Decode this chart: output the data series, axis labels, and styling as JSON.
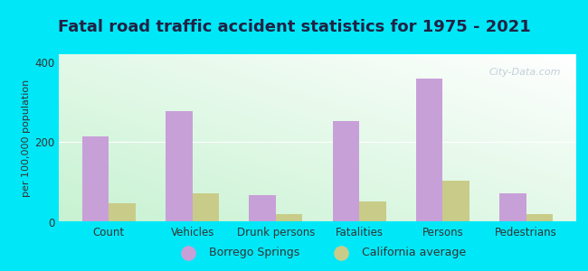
{
  "title": "Fatal road traffic accident statistics for 1975 - 2021",
  "categories": [
    "Count",
    "Vehicles",
    "Drunk persons",
    "Fatalities",
    "Persons",
    "Pedestrians"
  ],
  "borrego_springs": [
    215,
    278,
    68,
    252,
    360,
    72
  ],
  "california_avg": [
    48,
    72,
    20,
    52,
    105,
    20
  ],
  "borrego_color": "#c8a0d8",
  "california_color": "#c8cc88",
  "ylabel": "per 100,000 population",
  "ylim": [
    0,
    420
  ],
  "yticks": [
    0,
    200,
    400
  ],
  "outer_bg": "#00e8f8",
  "bar_width": 0.32,
  "legend_labels": [
    "Borrego Springs",
    "California average"
  ],
  "watermark": "City-Data.com",
  "title_color": "#222244",
  "title_fontsize": 13
}
